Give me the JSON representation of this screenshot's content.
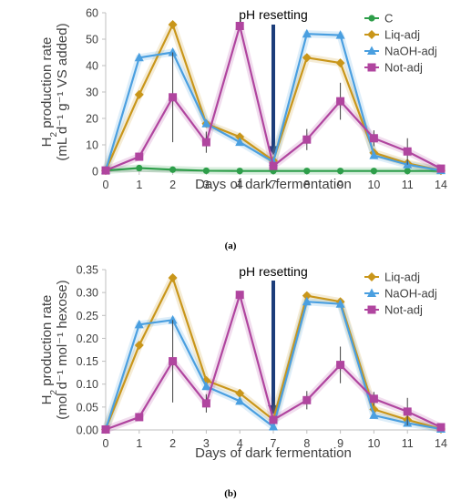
{
  "chart_data": [
    {
      "type": "line",
      "panel_label": "(a)",
      "ylabel_main": "H",
      "ylabel_sub": "2",
      "ylabel_rest": " production rate",
      "ylabel_line2": "(mL d⁻¹ g⁻¹ VS added)",
      "xlabel": "Days of dark fermentation",
      "categories": [
        "0",
        "1",
        "2",
        "3",
        "4",
        "7",
        "8",
        "9",
        "10",
        "11",
        "14"
      ],
      "ylim": [
        0,
        60
      ],
      "yticks": [
        "0",
        "10",
        "20",
        "30",
        "40",
        "50",
        "60"
      ],
      "yticks_values": [
        0,
        10,
        20,
        30,
        40,
        50,
        60
      ],
      "annotation": "pH resetting",
      "annotation_category": "7",
      "legend_position": "top-right",
      "series": [
        {
          "name": "C",
          "color": "#2e9e4a",
          "marker": "circle",
          "values": [
            0.3,
            1.2,
            0.6,
            0.2,
            0.1,
            0.1,
            0.1,
            0.1,
            0.1,
            0.1,
            0.1
          ]
        },
        {
          "name": "Liq-adj",
          "color": "#c9961a",
          "marker": "diamond",
          "values": [
            0.3,
            29,
            55.5,
            18,
            13,
            4,
            43,
            41,
            7,
            3,
            0.3
          ]
        },
        {
          "name": "NaOH-adj",
          "color": "#4a9fe0",
          "marker": "triangle",
          "values": [
            0.3,
            43,
            45,
            18,
            11,
            3.5,
            52,
            51.5,
            6,
            2.5,
            0.3
          ]
        },
        {
          "name": "Not-adj",
          "color": "#b0459f",
          "marker": "square",
          "values": [
            0.3,
            5.5,
            28,
            11,
            55,
            2,
            12,
            26.5,
            12.5,
            7.5,
            1
          ],
          "error": [
            0,
            0,
            17,
            4,
            0,
            0,
            4,
            7,
            3,
            5,
            0
          ]
        }
      ]
    },
    {
      "type": "line",
      "panel_label": "(b)",
      "ylabel_main": "H",
      "ylabel_sub": "2",
      "ylabel_rest": " production rate",
      "ylabel_line2": "(mol d⁻¹ mol⁻¹ hexose)",
      "xlabel": "Days of dark fermentation",
      "categories": [
        "0",
        "1",
        "2",
        "3",
        "4",
        "7",
        "8",
        "9",
        "10",
        "11",
        "14"
      ],
      "ylim": [
        0,
        0.35
      ],
      "yticks": [
        "0.00",
        "0.05",
        "0.10",
        "0.15",
        "0.20",
        "0.25",
        "0.30",
        "0.35"
      ],
      "yticks_values": [
        0,
        0.05,
        0.1,
        0.15,
        0.2,
        0.25,
        0.3,
        0.35
      ],
      "annotation": "pH resetting",
      "annotation_category": "7",
      "legend_position": "top-right",
      "series": [
        {
          "name": "Liq-adj",
          "color": "#c9961a",
          "marker": "diamond",
          "values": [
            0.001,
            0.185,
            0.332,
            0.108,
            0.08,
            0.022,
            0.293,
            0.28,
            0.045,
            0.022,
            0.002
          ]
        },
        {
          "name": "NaOH-adj",
          "color": "#4a9fe0",
          "marker": "triangle",
          "values": [
            0.001,
            0.23,
            0.24,
            0.095,
            0.063,
            0.007,
            0.28,
            0.275,
            0.032,
            0.015,
            0.002
          ]
        },
        {
          "name": "Not-adj",
          "color": "#b0459f",
          "marker": "square",
          "values": [
            0.001,
            0.028,
            0.15,
            0.058,
            0.295,
            0.022,
            0.065,
            0.142,
            0.068,
            0.04,
            0.006
          ],
          "error": [
            0,
            0,
            0.09,
            0.02,
            0,
            0,
            0.02,
            0.04,
            0.015,
            0.03,
            0
          ]
        }
      ]
    }
  ]
}
